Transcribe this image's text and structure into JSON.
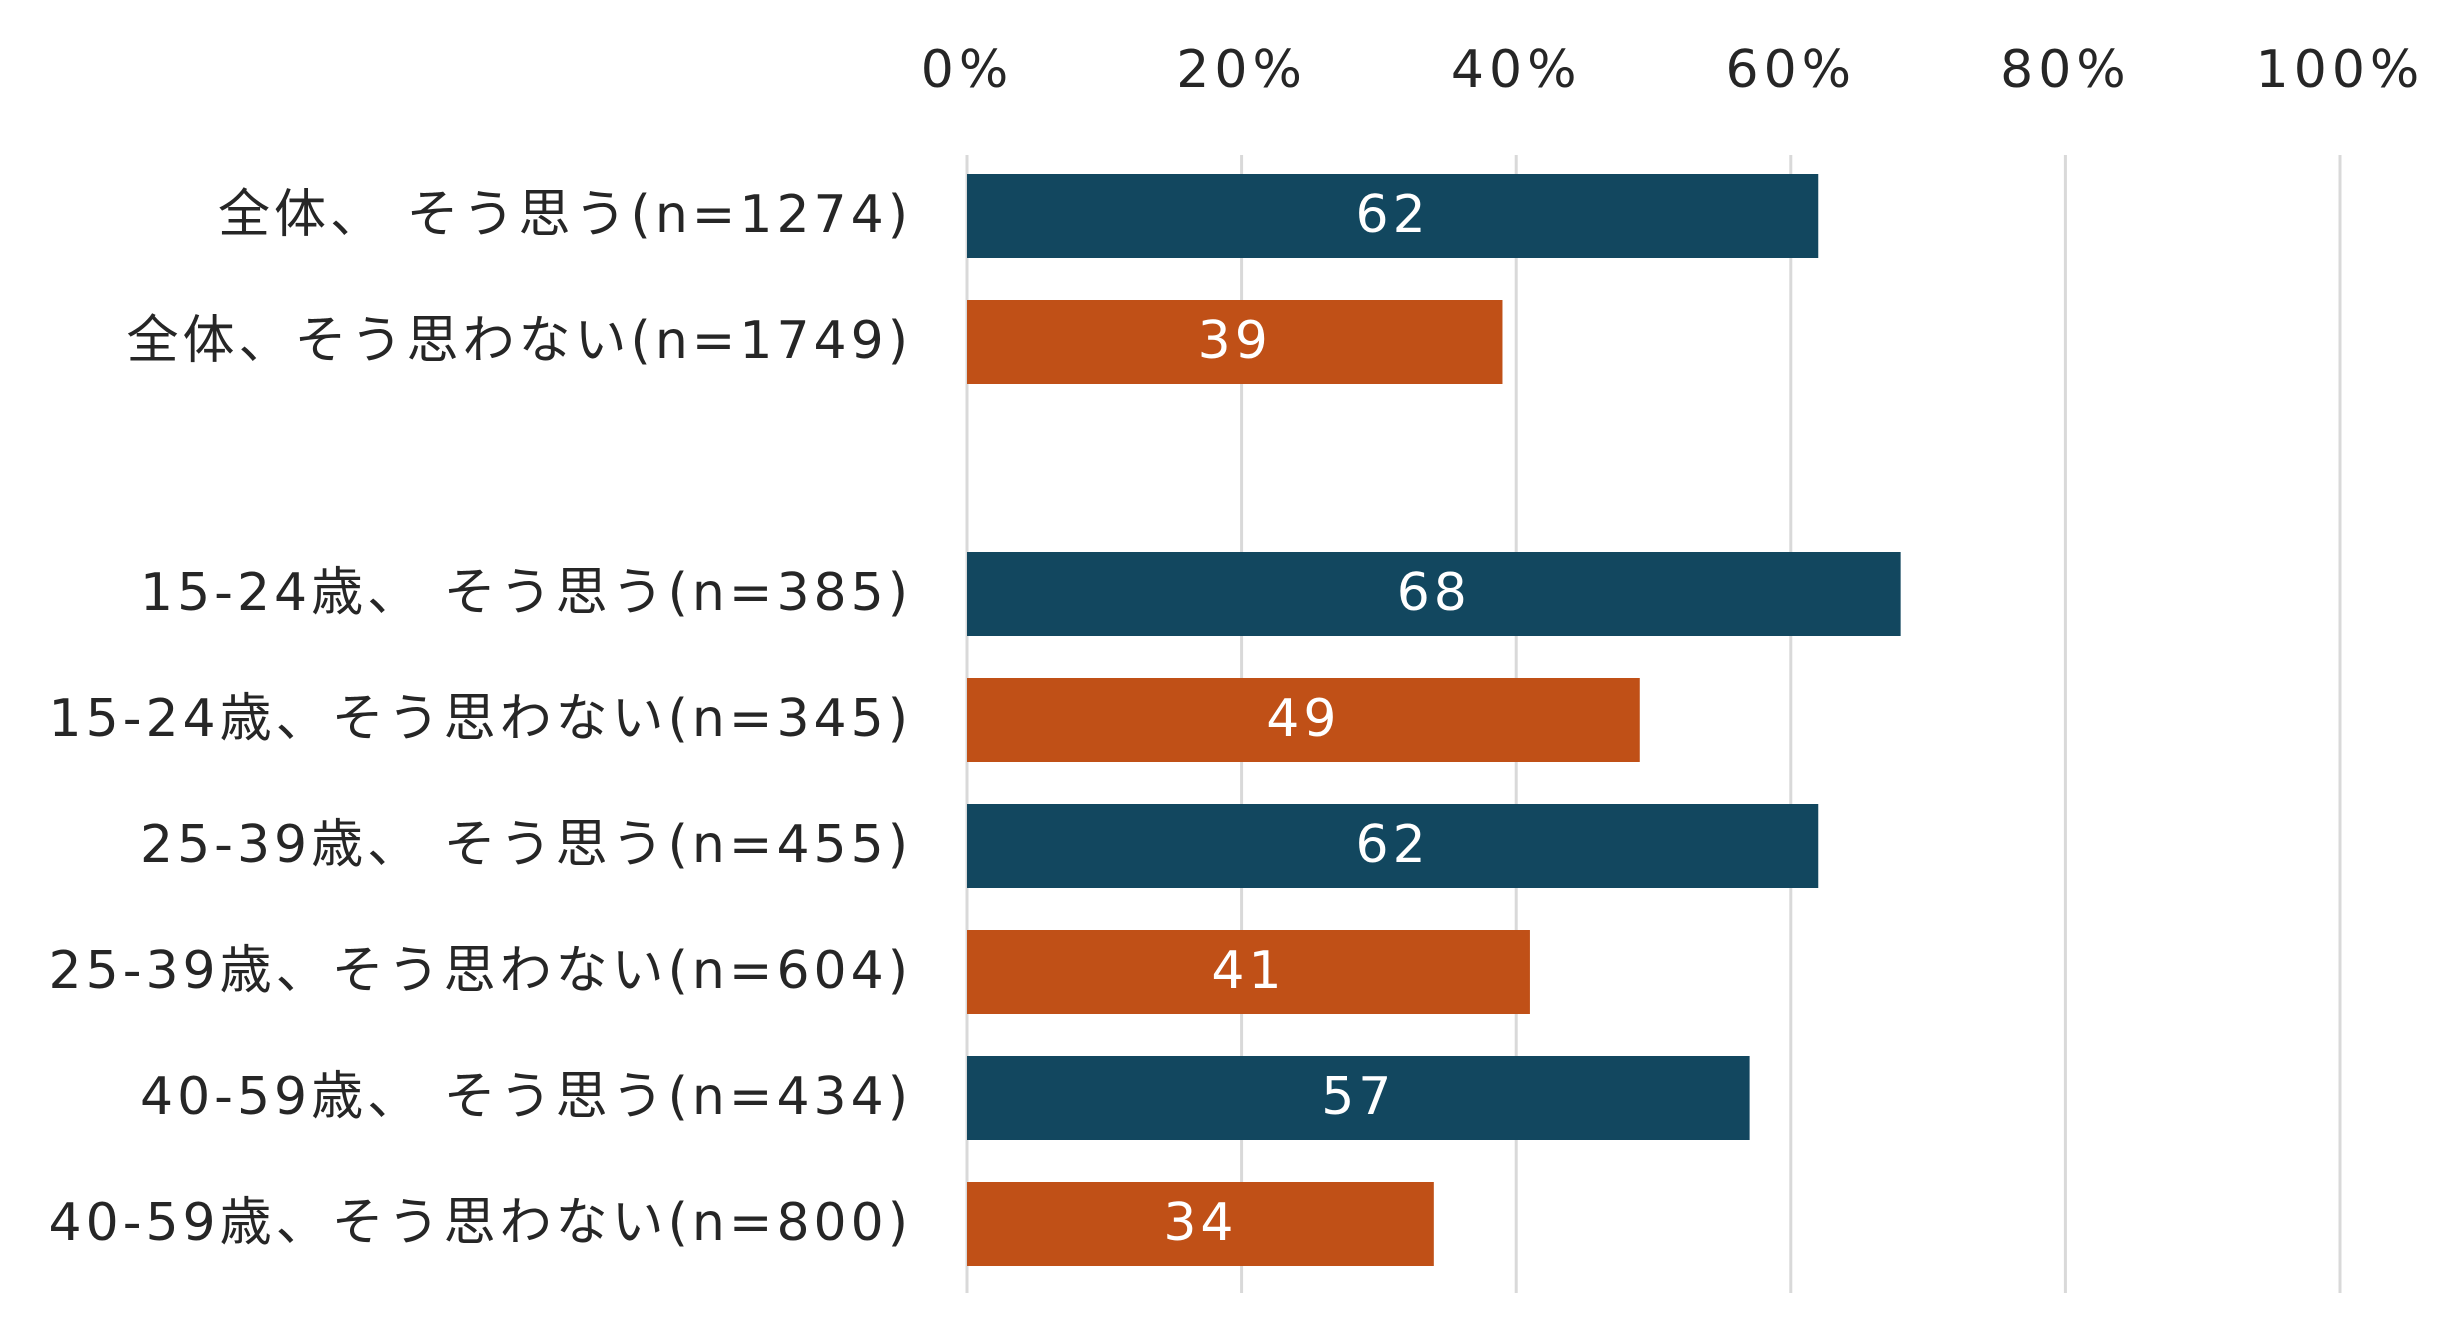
{
  "chart_data": {
    "type": "bar",
    "orientation": "horizontal",
    "title": "",
    "xlabel": "",
    "ylabel": "",
    "xlim": [
      0,
      100
    ],
    "ticks": [
      {
        "value": 0,
        "label": "0%"
      },
      {
        "value": 20,
        "label": "20%"
      },
      {
        "value": 40,
        "label": "40%"
      },
      {
        "value": 60,
        "label": "60%"
      },
      {
        "value": 80,
        "label": "80%"
      },
      {
        "value": 100,
        "label": "100%"
      }
    ],
    "tick_position": "top",
    "grid": true,
    "data_labels": true,
    "colors": {
      "agree": "#12475f",
      "disagree": "#c05017",
      "grid": "#d9d9d9",
      "text": "#262626"
    },
    "rows": [
      {
        "label": "全体、 そう思う(n=1274)",
        "value": 62,
        "group": "agree"
      },
      {
        "label": "全体、そう思わない(n=1749)",
        "value": 39,
        "group": "disagree"
      },
      {
        "label": "",
        "value": null,
        "group": "gap"
      },
      {
        "label": "15-24歳、 そう思う(n=385)",
        "value": 68,
        "group": "agree"
      },
      {
        "label": "15-24歳、そう思わない(n=345)",
        "value": 49,
        "group": "disagree"
      },
      {
        "label": "25-39歳、 そう思う(n=455)",
        "value": 62,
        "group": "agree"
      },
      {
        "label": "25-39歳、そう思わない(n=604)",
        "value": 41,
        "group": "disagree"
      },
      {
        "label": "40-59歳、 そう思う(n=434)",
        "value": 57,
        "group": "agree"
      },
      {
        "label": "40-59歳、そう思わない(n=800)",
        "value": 34,
        "group": "disagree"
      }
    ]
  }
}
